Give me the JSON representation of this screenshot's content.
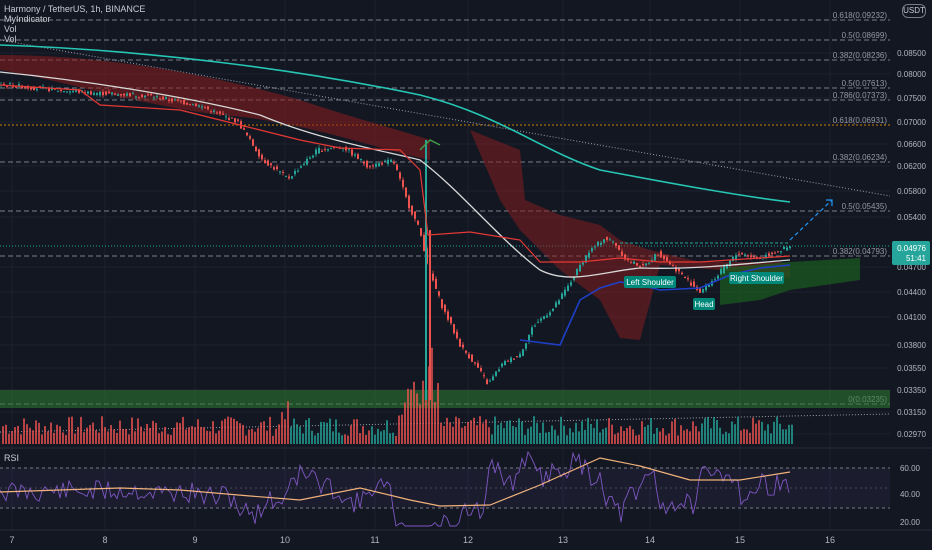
{
  "legend": {
    "title": "Harmony / TetherUS, 1h, BINANCE",
    "line2": "MyIndicator",
    "line3": "Vol",
    "line4": "Vol"
  },
  "currency_badge": "USDT",
  "rsi_label": "RSI",
  "colors": {
    "background": "#131722",
    "up": "#26a69a",
    "down": "#ef5350",
    "ma_teal": "#26c6b4",
    "ma_white": "#d8d8d8",
    "support_zone": "#2e7d32",
    "rsi_line": "#7e57c2",
    "rsi_ma": "#f0b27a"
  },
  "chart_data": {
    "type": "candlestick",
    "title": "Harmony / TetherUS, 1h, BINANCE",
    "x_ticks": [
      "7",
      "8",
      "9",
      "10",
      "11",
      "12",
      "13",
      "14",
      "15",
      "16"
    ],
    "price_axis_ticks": [
      "0.08500",
      "0.08000",
      "0.07500",
      "0.07000",
      "0.06600",
      "0.06200",
      "0.05800",
      "0.05400",
      "0.04700",
      "0.04400",
      "0.04100",
      "0.03800",
      "0.03550",
      "0.03350",
      "0.03150",
      "0.02970"
    ],
    "current_price": "0.04976",
    "countdown": "51:41",
    "fib_levels": [
      {
        "label": "0.618(0.09232)"
      },
      {
        "label": "0.5(0.08699)"
      },
      {
        "label": "0.382(0.08236)"
      },
      {
        "label": "0.5(0.07613)"
      },
      {
        "label": "0.786(0.07373)"
      },
      {
        "label": "0.618(0.06931)"
      },
      {
        "label": "0.382(0.06234)"
      },
      {
        "label": "0.5(0.05435)"
      },
      {
        "label": "0.382(0.04793)"
      },
      {
        "label": "0(0.03235)"
      }
    ],
    "annotations": [
      "Left Shoulder",
      "Head",
      "Right Shoulder"
    ],
    "rsi_ticks": [
      "60.00",
      "40.00",
      "20.00"
    ],
    "pattern": "inverse head and shoulders"
  }
}
